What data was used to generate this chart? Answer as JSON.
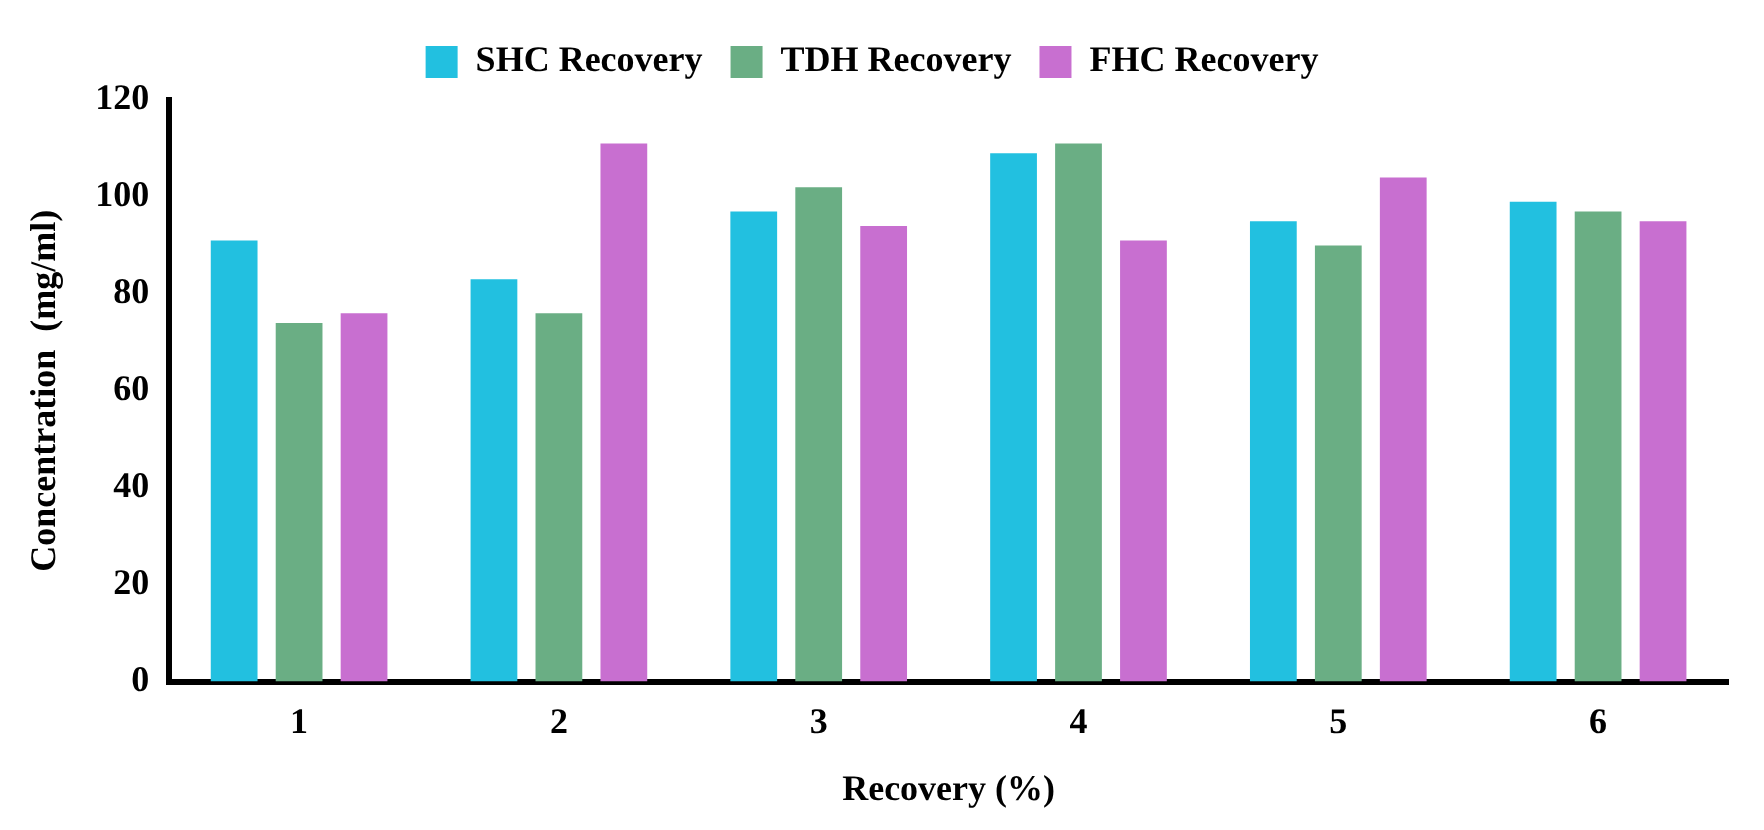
{
  "chart_data": {
    "type": "bar",
    "xlabel": "Recovery (%)",
    "ylabel": "Concentration  (mg/ml)",
    "categories": [
      "1",
      "2",
      "3",
      "4",
      "5",
      "6"
    ],
    "series": [
      {
        "name": "SHC Recovery",
        "color": "#22c0e0",
        "values": [
          91,
          83,
          97,
          109,
          95,
          99
        ]
      },
      {
        "name": "TDH Recovery",
        "color": "#6aae84",
        "values": [
          74,
          76,
          102,
          111,
          90,
          97
        ]
      },
      {
        "name": "FHC Recovery",
        "color": "#c86fd0",
        "values": [
          76,
          111,
          94,
          91,
          104,
          95
        ]
      }
    ],
    "ylim": [
      0,
      120
    ],
    "yticks": [
      0,
      20,
      40,
      60,
      80,
      100,
      120
    ],
    "grid": false,
    "legend": "top"
  }
}
